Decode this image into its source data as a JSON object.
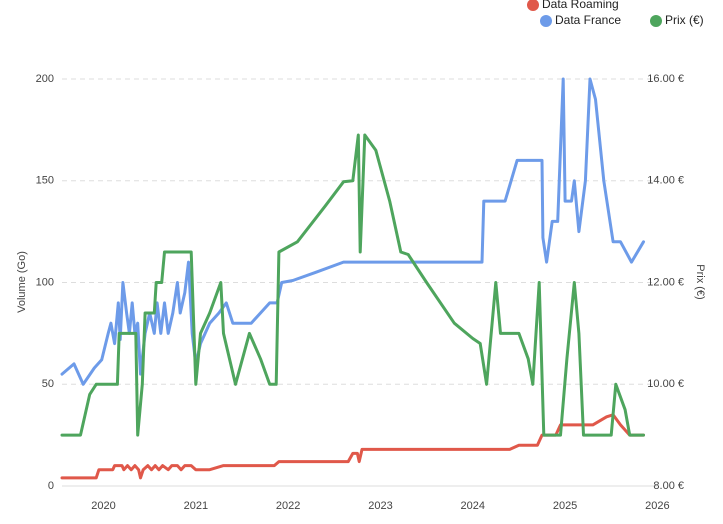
{
  "chart_data": {
    "type": "line",
    "xlim": [
      2019.55,
      2026.05
    ],
    "xticks": [
      2020,
      2021,
      2022,
      2023,
      2024,
      2025,
      2026
    ],
    "ylim": [
      0,
      200
    ],
    "yticks": [
      0,
      50,
      100,
      150,
      200
    ],
    "y2lim": [
      8,
      16
    ],
    "y2ticks": [
      {
        "value": 8,
        "label": "8.00 €"
      },
      {
        "value": 10,
        "label": "10.00 €"
      },
      {
        "value": 12,
        "label": "12.00 €"
      },
      {
        "value": 14,
        "label": "14.00 €"
      },
      {
        "value": 16,
        "label": "16.00 €"
      }
    ],
    "ylabel": "Volume (Go)",
    "y2label": "Prix (€)",
    "grid": true,
    "legend": "top-right",
    "series": [
      {
        "name": "Data Roaming",
        "color": "#e0584a",
        "x": [
          2019.55,
          2019.92,
          2019.95,
          2020.1,
          2020.12,
          2020.2,
          2020.22,
          2020.26,
          2020.3,
          2020.34,
          2020.38,
          2020.4,
          2020.43,
          2020.48,
          2020.52,
          2020.56,
          2020.6,
          2020.64,
          2020.7,
          2020.74,
          2020.8,
          2020.84,
          2020.88,
          2020.95,
          2021.0,
          2021.15,
          2021.3,
          2021.85,
          2021.9,
          2022.2,
          2022.65,
          2022.7,
          2022.75,
          2022.77,
          2022.8,
          2023.5,
          2024.0,
          2024.4,
          2024.5,
          2024.7,
          2024.75,
          2024.9,
          2024.95,
          2025.3,
          2025.45,
          2025.52,
          2025.6,
          2025.7,
          2025.85
        ],
        "values": [
          4,
          4,
          8,
          8,
          10,
          10,
          8,
          10,
          8,
          10,
          8,
          4,
          8,
          10,
          8,
          10,
          8,
          10,
          8,
          10,
          10,
          8,
          10,
          10,
          8,
          8,
          10,
          10,
          12,
          12,
          12,
          16,
          16,
          12,
          18,
          18,
          18,
          18,
          20,
          20,
          25,
          25,
          30,
          30,
          34,
          35,
          30,
          25,
          25
        ]
      },
      {
        "name": "Data France",
        "color": "#6d9be9",
        "x": [
          2019.55,
          2019.68,
          2019.78,
          2019.9,
          2019.98,
          2020.05,
          2020.08,
          2020.12,
          2020.16,
          2020.18,
          2020.21,
          2020.25,
          2020.28,
          2020.31,
          2020.34,
          2020.37,
          2020.4,
          2020.45,
          2020.5,
          2020.55,
          2020.58,
          2020.62,
          2020.66,
          2020.7,
          2020.75,
          2020.8,
          2020.83,
          2020.88,
          2020.92,
          2020.96,
          2021.0,
          2021.05,
          2021.15,
          2021.25,
          2021.33,
          2021.4,
          2021.6,
          2021.7,
          2021.8,
          2021.88,
          2021.93,
          2022.05,
          2022.3,
          2022.6,
          2023.0,
          2023.5,
          2024.0,
          2024.1,
          2024.12,
          2024.35,
          2024.48,
          2024.75,
          2024.76,
          2024.8,
          2024.86,
          2024.92,
          2024.98,
          2025.0,
          2025.07,
          2025.1,
          2025.15,
          2025.22,
          2025.27,
          2025.33,
          2025.42,
          2025.52,
          2025.6,
          2025.72,
          2025.85
        ],
        "values": [
          55,
          60,
          50,
          58,
          62,
          75,
          80,
          70,
          90,
          72,
          100,
          85,
          75,
          90,
          75,
          80,
          55,
          75,
          85,
          75,
          90,
          75,
          90,
          75,
          85,
          100,
          85,
          95,
          110,
          75,
          60,
          70,
          80,
          85,
          90,
          80,
          80,
          85,
          90,
          90,
          100,
          101,
          105,
          110,
          110,
          110,
          110,
          110,
          140,
          140,
          160,
          160,
          122,
          110,
          130,
          130,
          200,
          140,
          140,
          150,
          125,
          150,
          200,
          190,
          150,
          120,
          120,
          110,
          120
        ]
      },
      {
        "name": "Prix (€)",
        "color": "#4ea55d",
        "axis": "y2",
        "x": [
          2019.55,
          2019.75,
          2019.85,
          2019.92,
          2020.15,
          2020.17,
          2020.35,
          2020.37,
          2020.42,
          2020.45,
          2020.55,
          2020.57,
          2020.63,
          2020.66,
          2020.95,
          2021.0,
          2021.05,
          2021.15,
          2021.27,
          2021.3,
          2021.43,
          2021.58,
          2021.7,
          2021.8,
          2021.87,
          2021.9,
          2022.1,
          2022.4,
          2022.6,
          2022.7,
          2022.76,
          2022.78,
          2022.83,
          2022.95,
          2023.1,
          2023.22,
          2023.3,
          2023.5,
          2023.8,
          2024.0,
          2024.08,
          2024.15,
          2024.25,
          2024.3,
          2024.5,
          2024.6,
          2024.65,
          2024.72,
          2024.77,
          2024.95,
          2025.02,
          2025.1,
          2025.15,
          2025.2,
          2025.5,
          2025.55,
          2025.65,
          2025.7,
          2025.85
        ],
        "values": [
          9,
          9,
          9.8,
          10,
          10,
          11,
          11,
          9,
          10,
          11.4,
          11.4,
          12,
          12,
          12.6,
          12.6,
          10,
          11,
          11.4,
          12,
          11,
          10,
          11,
          10.5,
          10,
          10,
          12.6,
          12.8,
          13.5,
          13.98,
          14,
          14.9,
          12.6,
          14.9,
          14.6,
          13.6,
          12.6,
          12.55,
          12,
          11.2,
          10.9,
          10.8,
          10,
          12,
          11,
          11,
          10.5,
          10,
          12,
          9,
          9,
          10.5,
          12,
          11,
          9,
          9,
          10,
          9.5,
          9,
          9
        ]
      }
    ]
  }
}
